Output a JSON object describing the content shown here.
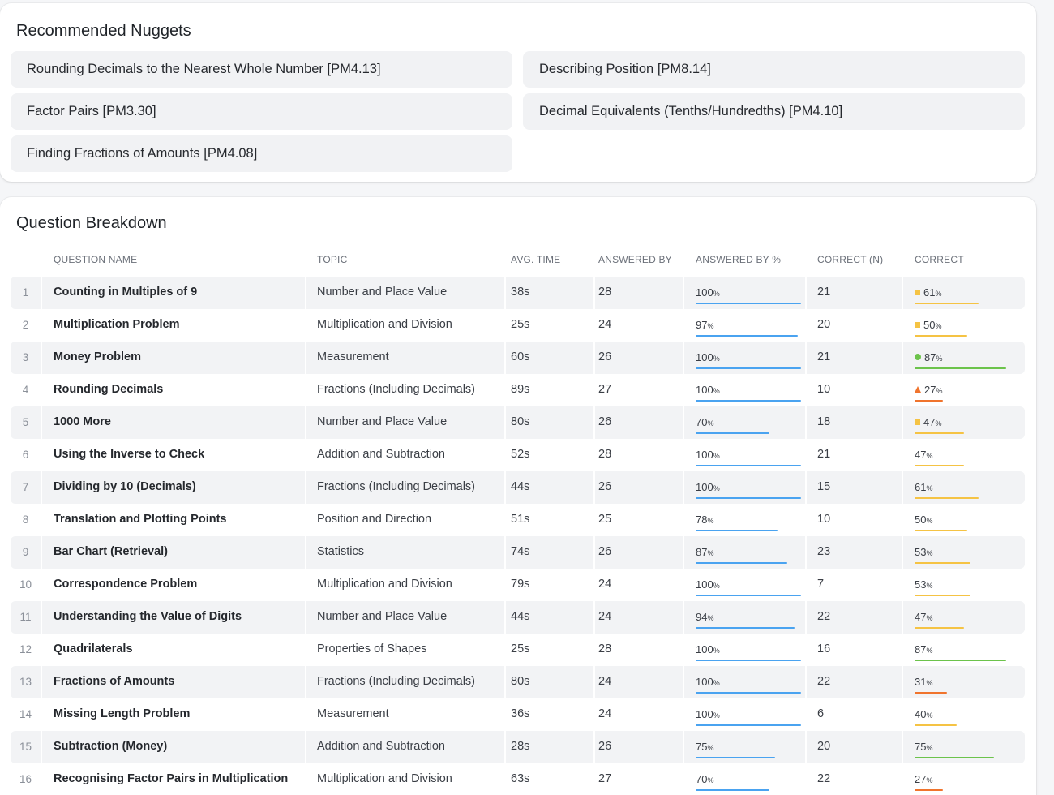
{
  "colors": {
    "blue": "#4aa3f0",
    "yellow": "#f5c344",
    "green": "#6cc34b",
    "orange": "#f0742d"
  },
  "nuggets": {
    "title": "Recommended Nuggets",
    "items": [
      "Rounding Decimals to the Nearest Whole Number [PM4.13]",
      "Describing Position [PM8.14]",
      "Factor Pairs [PM3.30]",
      "Decimal Equivalents (Tenths/Hundredths) [PM4.10]",
      "Finding Fractions of Amounts [PM4.08]"
    ]
  },
  "breakdown": {
    "title": "Question Breakdown",
    "headers": {
      "question_name": "QUESTION NAME",
      "topic": "TOPIC",
      "avg_time": "AVG. TIME",
      "answered_by": "ANSWERED BY",
      "answered_by_pct": "ANSWERED BY %",
      "correct_n": "CORRECT (N)",
      "correct": "CORRECT"
    },
    "rows": [
      {
        "idx": "1",
        "name": "Counting in Multiples of 9",
        "topic": "Number and Place Value",
        "time": "38s",
        "answered": "28",
        "answered_pct": 100,
        "correct_n": "21",
        "correct_pct": 61,
        "indicator": "square",
        "color": "yellow"
      },
      {
        "idx": "2",
        "name": "Multiplication Problem",
        "topic": "Multiplication and Division",
        "time": "25s",
        "answered": "24",
        "answered_pct": 97,
        "correct_n": "20",
        "correct_pct": 50,
        "indicator": "square",
        "color": "yellow"
      },
      {
        "idx": "3",
        "name": "Money Problem",
        "topic": "Measurement",
        "time": "60s",
        "answered": "26",
        "answered_pct": 100,
        "correct_n": "21",
        "correct_pct": 87,
        "indicator": "circle",
        "color": "green"
      },
      {
        "idx": "4",
        "name": "Rounding Decimals",
        "topic": "Fractions (Including Decimals)",
        "time": "89s",
        "answered": "27",
        "answered_pct": 100,
        "correct_n": "10",
        "correct_pct": 27,
        "indicator": "triangle",
        "color": "orange"
      },
      {
        "idx": "5",
        "name": "1000 More",
        "topic": "Number and Place Value",
        "time": "80s",
        "answered": "26",
        "answered_pct": 70,
        "correct_n": "18",
        "correct_pct": 47,
        "indicator": "square",
        "color": "yellow"
      },
      {
        "idx": "6",
        "name": "Using the Inverse to Check",
        "topic": "Addition and Subtraction",
        "time": "52s",
        "answered": "28",
        "answered_pct": 100,
        "correct_n": "21",
        "correct_pct": 47,
        "indicator": "",
        "color": "yellow"
      },
      {
        "idx": "7",
        "name": "Dividing by 10 (Decimals)",
        "topic": "Fractions (Including Decimals)",
        "time": "44s",
        "answered": "26",
        "answered_pct": 100,
        "correct_n": "15",
        "correct_pct": 61,
        "indicator": "",
        "color": "yellow"
      },
      {
        "idx": "8",
        "name": "Translation and Plotting Points",
        "topic": "Position and Direction",
        "time": "51s",
        "answered": "25",
        "answered_pct": 78,
        "correct_n": "10",
        "correct_pct": 50,
        "indicator": "",
        "color": "yellow"
      },
      {
        "idx": "9",
        "name": "Bar Chart (Retrieval)",
        "topic": "Statistics",
        "time": "74s",
        "answered": "26",
        "answered_pct": 87,
        "correct_n": "23",
        "correct_pct": 53,
        "indicator": "",
        "color": "yellow"
      },
      {
        "idx": "10",
        "name": "Correspondence Problem",
        "topic": "Multiplication and Division",
        "time": "79s",
        "answered": "24",
        "answered_pct": 100,
        "correct_n": "7",
        "correct_pct": 53,
        "indicator": "",
        "color": "yellow"
      },
      {
        "idx": "11",
        "name": "Understanding the Value of Digits",
        "topic": "Number and Place Value",
        "time": "44s",
        "answered": "24",
        "answered_pct": 94,
        "correct_n": "22",
        "correct_pct": 47,
        "indicator": "",
        "color": "yellow"
      },
      {
        "idx": "12",
        "name": "Quadrilaterals",
        "topic": "Properties of Shapes",
        "time": "25s",
        "answered": "28",
        "answered_pct": 100,
        "correct_n": "16",
        "correct_pct": 87,
        "indicator": "",
        "color": "green"
      },
      {
        "idx": "13",
        "name": "Fractions of Amounts",
        "topic": "Fractions (Including Decimals)",
        "time": "80s",
        "answered": "24",
        "answered_pct": 100,
        "correct_n": "22",
        "correct_pct": 31,
        "indicator": "",
        "color": "orange"
      },
      {
        "idx": "14",
        "name": "Missing Length Problem",
        "topic": "Measurement",
        "time": "36s",
        "answered": "24",
        "answered_pct": 100,
        "correct_n": "6",
        "correct_pct": 40,
        "indicator": "",
        "color": "yellow"
      },
      {
        "idx": "15",
        "name": "Subtraction (Money)",
        "topic": "Addition and Subtraction",
        "time": "28s",
        "answered": "26",
        "answered_pct": 75,
        "correct_n": "20",
        "correct_pct": 75,
        "indicator": "",
        "color": "green"
      },
      {
        "idx": "16",
        "name": "Recognising Factor Pairs in Multiplication",
        "topic": "Multiplication and Division",
        "time": "63s",
        "answered": "27",
        "answered_pct": 70,
        "correct_n": "22",
        "correct_pct": 27,
        "indicator": "",
        "color": "orange"
      }
    ]
  }
}
